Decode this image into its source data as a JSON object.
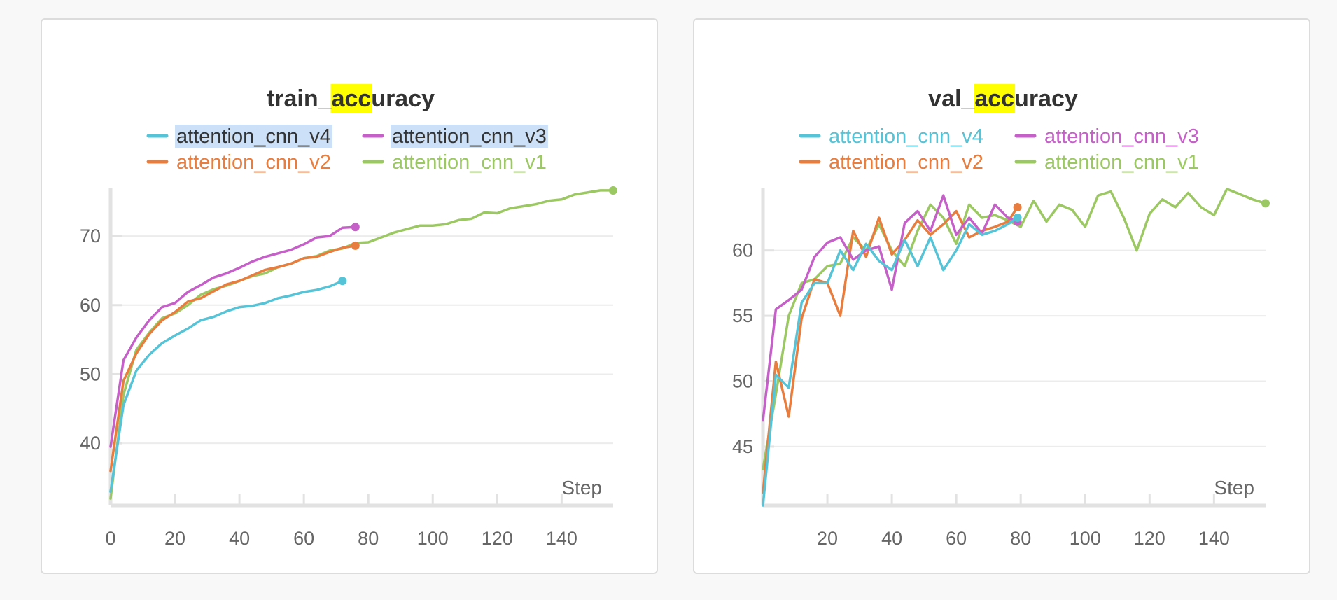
{
  "highlight_color": "#ffff00",
  "chart_data": [
    {
      "type": "line",
      "title_parts": [
        "train_",
        "acc",
        "uracy"
      ],
      "highlighted_part": 1,
      "xlabel": "Step",
      "xlim": [
        0,
        156
      ],
      "ylim": [
        31,
        77
      ],
      "xticks": [
        0,
        20,
        40,
        60,
        80,
        100,
        120,
        140
      ],
      "yticks": [
        40,
        50,
        60,
        70
      ],
      "grid": true,
      "legend_position": "top",
      "legend_highlighted": [
        "attention_cnn_v4",
        "attention_cnn_v3"
      ],
      "series": [
        {
          "name": "attention_cnn_v4",
          "color": "#56c3d6",
          "x": [
            0,
            4,
            8,
            12,
            16,
            20,
            24,
            28,
            32,
            36,
            40,
            44,
            48,
            52,
            56,
            60,
            64,
            68,
            72
          ],
          "y": [
            33,
            45.5,
            50.5,
            52.8,
            54.5,
            55.6,
            56.6,
            57.8,
            58.3,
            59.1,
            59.7,
            59.9,
            60.3,
            61.0,
            61.4,
            61.9,
            62.2,
            62.7,
            63.5
          ]
        },
        {
          "name": "attention_cnn_v3",
          "color": "#c660c9",
          "x": [
            0,
            4,
            8,
            12,
            16,
            20,
            24,
            28,
            32,
            36,
            40,
            44,
            48,
            52,
            56,
            60,
            64,
            68,
            72,
            76
          ],
          "y": [
            39.5,
            52,
            55.3,
            57.8,
            59.7,
            60.3,
            61.9,
            62.9,
            64.0,
            64.6,
            65.4,
            66.3,
            67.0,
            67.5,
            68.0,
            68.8,
            69.8,
            70.0,
            71.2,
            71.3
          ]
        },
        {
          "name": "attention_cnn_v2",
          "color": "#e77d3e",
          "x": [
            0,
            4,
            8,
            12,
            16,
            20,
            24,
            28,
            32,
            36,
            40,
            44,
            48,
            52,
            56,
            60,
            64,
            68,
            72,
            76
          ],
          "y": [
            36,
            49,
            53,
            55.8,
            57.8,
            59.0,
            60.5,
            61.0,
            62.0,
            63.0,
            63.5,
            64.3,
            65.1,
            65.5,
            66.0,
            66.8,
            67.0,
            67.7,
            68.3,
            68.6
          ]
        },
        {
          "name": "attention_cnn_v1",
          "color": "#9cc863",
          "x": [
            0,
            4,
            8,
            12,
            16,
            20,
            24,
            28,
            32,
            36,
            40,
            44,
            48,
            52,
            56,
            60,
            64,
            68,
            72,
            76,
            80,
            84,
            88,
            92,
            96,
            100,
            104,
            108,
            112,
            116,
            120,
            124,
            128,
            132,
            136,
            140,
            144,
            148,
            152,
            156
          ],
          "y": [
            32,
            47,
            53.5,
            56,
            58.1,
            58.8,
            60,
            61.5,
            62.3,
            62.8,
            63.5,
            64.2,
            64.6,
            65.5,
            66.0,
            66.8,
            67.1,
            67.9,
            68.2,
            69.0,
            69.1,
            69.8,
            70.5,
            71.0,
            71.5,
            71.5,
            71.7,
            72.3,
            72.5,
            73.4,
            73.3,
            74.0,
            74.3,
            74.6,
            75.1,
            75.3,
            76.0,
            76.3,
            76.6,
            76.6
          ]
        }
      ]
    },
    {
      "type": "line",
      "title_parts": [
        "val_",
        "acc",
        "uracy"
      ],
      "highlighted_part": 1,
      "xlabel": "Step",
      "xlim": [
        0,
        156
      ],
      "ylim": [
        40.5,
        64.8
      ],
      "xticks": [
        20,
        40,
        60,
        80,
        100,
        120,
        140
      ],
      "yticks": [
        45,
        50,
        55,
        60
      ],
      "grid": true,
      "legend_position": "top",
      "legend_highlighted": [],
      "series": [
        {
          "name": "attention_cnn_v4",
          "color": "#56c3d6",
          "x": [
            0,
            4,
            8,
            12,
            16,
            20,
            24,
            28,
            32,
            36,
            40,
            44,
            48,
            52,
            56,
            60,
            64,
            68,
            72,
            76,
            79
          ],
          "y": [
            40.5,
            50.5,
            49.5,
            56,
            57.5,
            57.5,
            60,
            58.5,
            60.5,
            59.2,
            58.5,
            60.8,
            58.8,
            61,
            58.5,
            60,
            62,
            61.2,
            61.5,
            62,
            62.5
          ]
        },
        {
          "name": "attention_cnn_v3",
          "color": "#c660c9",
          "x": [
            0,
            4,
            8,
            12,
            16,
            20,
            24,
            28,
            32,
            36,
            40,
            44,
            48,
            52,
            56,
            60,
            64,
            68,
            72,
            76,
            79
          ],
          "y": [
            47,
            55.5,
            56.2,
            57,
            59.5,
            60.6,
            61,
            59.3,
            60,
            60.3,
            57,
            62.1,
            63.0,
            61.5,
            64.2,
            61.2,
            62.5,
            61.3,
            63.5,
            62.5,
            62.2
          ]
        },
        {
          "name": "attention_cnn_v2",
          "color": "#e77d3e",
          "x": [
            0,
            4,
            8,
            12,
            16,
            20,
            24,
            28,
            32,
            36,
            40,
            44,
            48,
            52,
            56,
            60,
            64,
            68,
            72,
            76,
            79
          ],
          "y": [
            41.5,
            51.5,
            47.3,
            54.8,
            57.8,
            57.5,
            55,
            61.5,
            59.5,
            62.5,
            59.7,
            60.8,
            62.3,
            61.2,
            62,
            63,
            61,
            61.5,
            61.8,
            62.2,
            63.3
          ]
        },
        {
          "name": "attention_cnn_v1",
          "color": "#9cc863",
          "x": [
            0,
            4,
            8,
            12,
            16,
            20,
            24,
            28,
            32,
            36,
            40,
            44,
            48,
            52,
            56,
            60,
            64,
            68,
            72,
            76,
            80,
            84,
            88,
            92,
            96,
            100,
            104,
            108,
            112,
            116,
            120,
            124,
            128,
            132,
            136,
            140,
            144,
            148,
            152,
            156
          ],
          "y": [
            43.3,
            49,
            55,
            57.5,
            57.8,
            58.8,
            59,
            61,
            60,
            62,
            60,
            58.8,
            61.5,
            63.5,
            62.5,
            60.5,
            63.5,
            62.5,
            62.7,
            62.3,
            61.8,
            63.8,
            62.2,
            63.5,
            63.1,
            61.8,
            64.2,
            64.5,
            62.5,
            60,
            62.8,
            63.9,
            63.3,
            64.4,
            63.3,
            62.7,
            64.7,
            64.3,
            63.9,
            63.6
          ]
        }
      ]
    }
  ]
}
